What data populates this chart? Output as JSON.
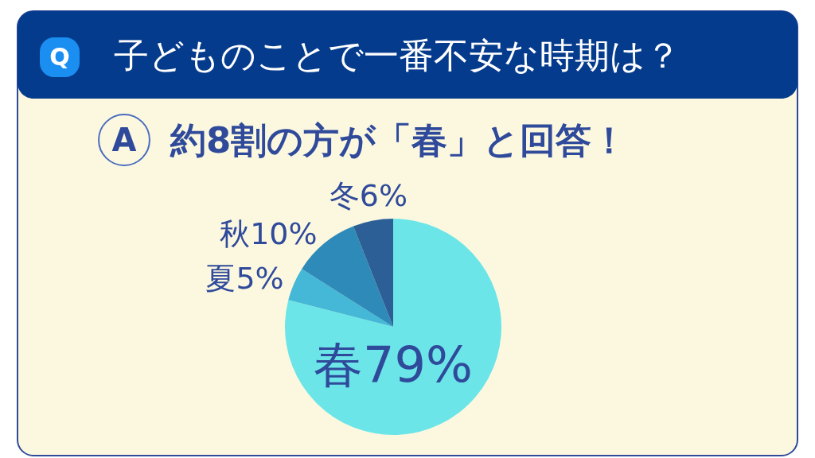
{
  "chart_data": {
    "type": "pie",
    "title": "子どものことで一番不安な時期は？",
    "subtitle": "約8割の方が「春」と回答！",
    "annotations": [
      "Q",
      "A"
    ],
    "categories": [
      "春",
      "夏",
      "秋",
      "冬"
    ],
    "values": [
      79,
      5,
      10,
      6
    ],
    "colors": [
      "#6ce5e8",
      "#44b8d6",
      "#2e8ab8",
      "#2c5f96"
    ],
    "value_labels": [
      "79%",
      "5%",
      "10%",
      "6%"
    ]
  }
}
